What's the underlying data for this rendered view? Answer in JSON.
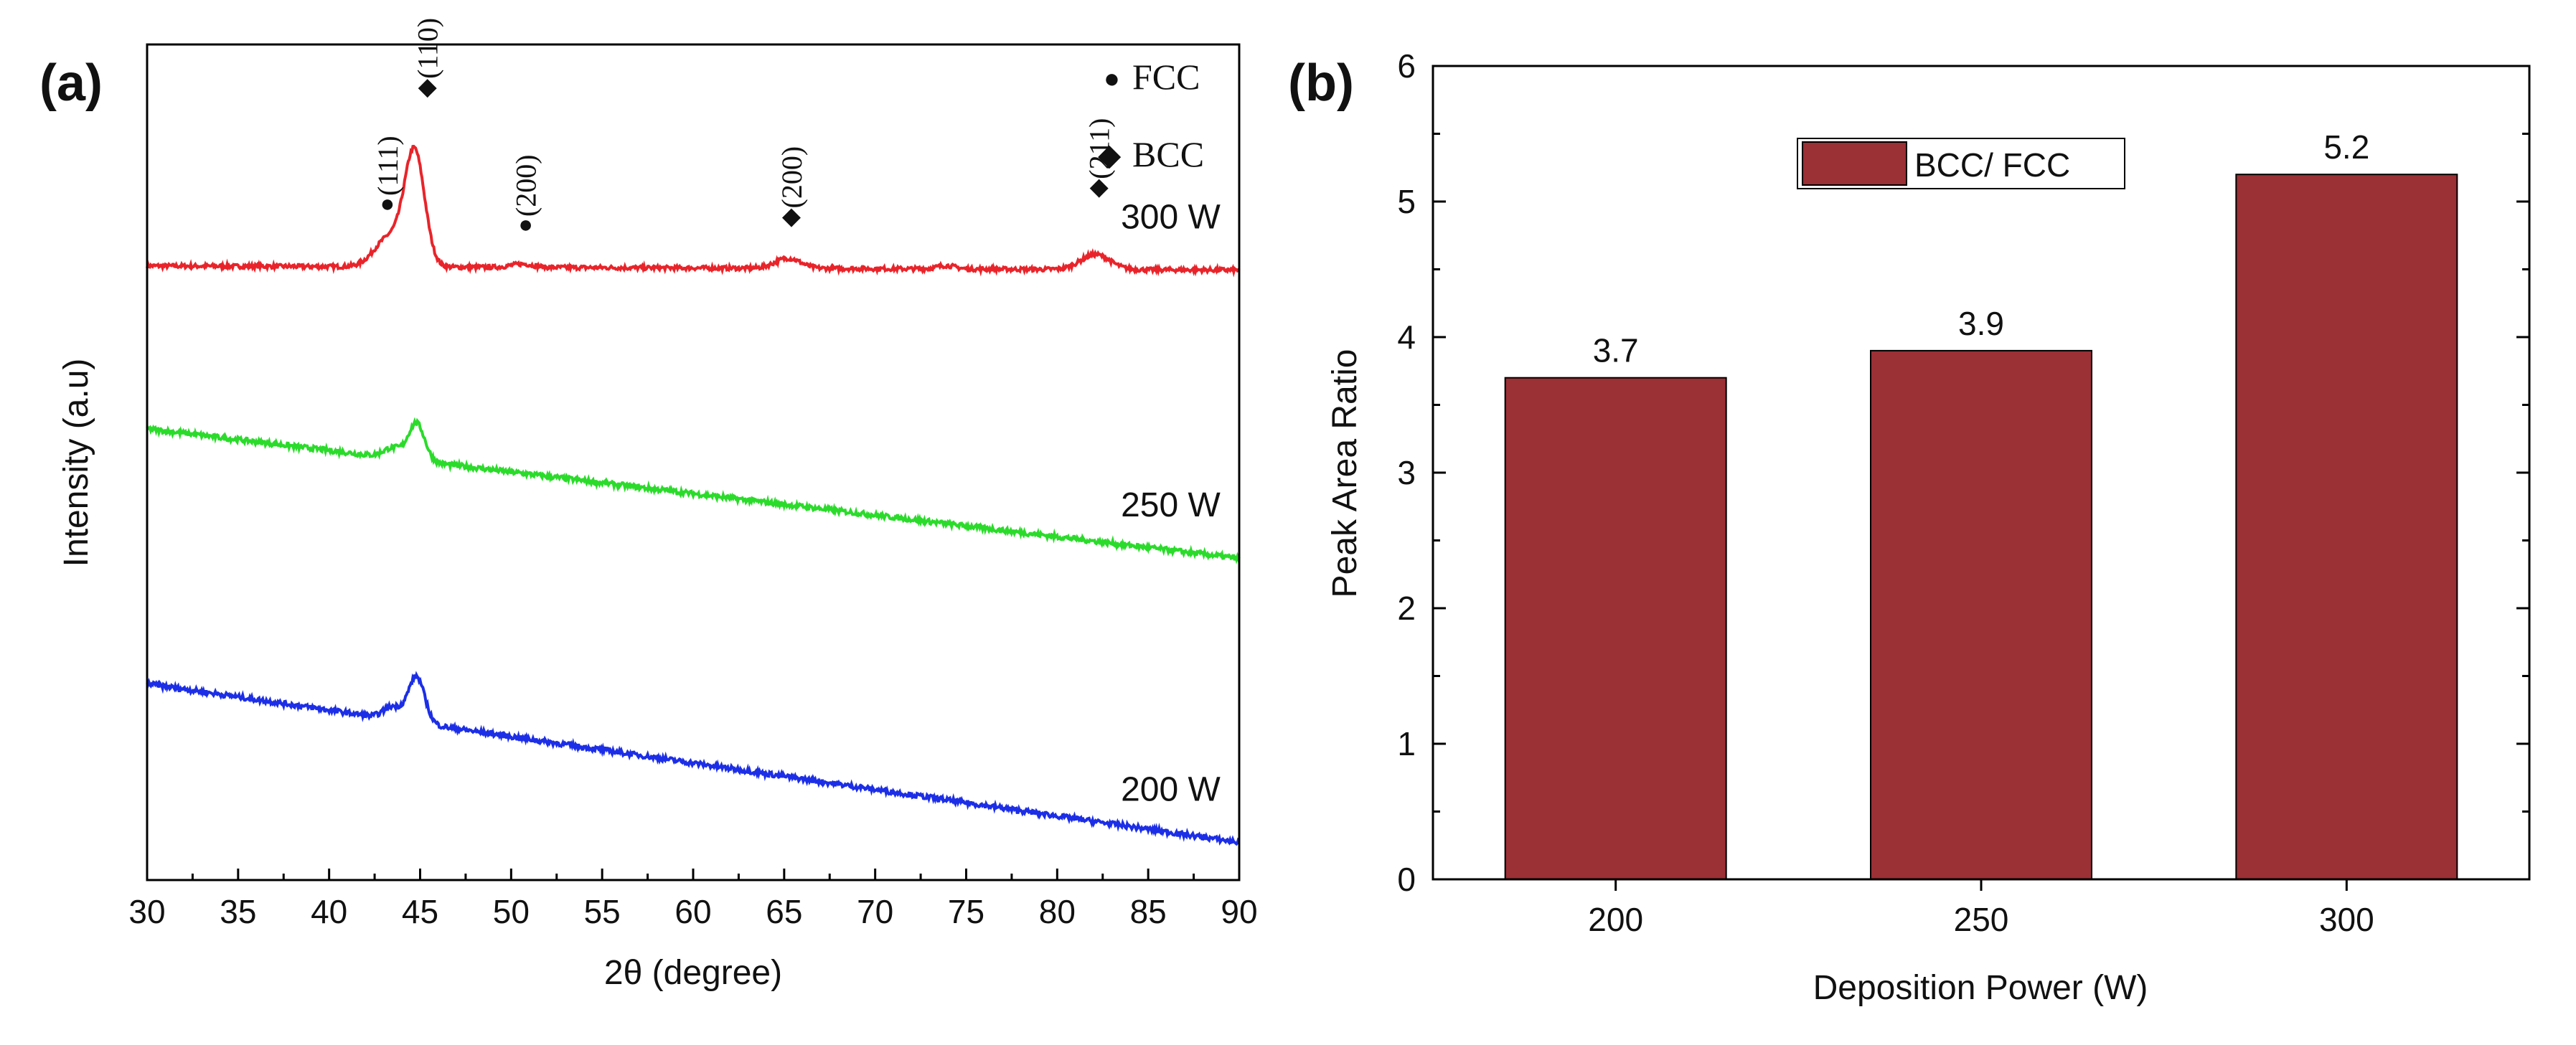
{
  "chart_data": [
    {
      "type": "line",
      "panel_label": "(a)",
      "title": "",
      "xlabel": "2θ (degree)",
      "ylabel": "Intensity (a.u)",
      "xlim": [
        30,
        90
      ],
      "xticks": [
        30,
        35,
        40,
        45,
        50,
        55,
        60,
        65,
        70,
        75,
        80,
        85,
        90
      ],
      "ylim": [
        0,
        10
      ],
      "legend": {
        "position": "top-right",
        "entries": [
          {
            "marker": "●",
            "label": "FCC"
          },
          {
            "marker": "◆",
            "label": "BCC"
          }
        ]
      },
      "series": [
        {
          "name": "300 W",
          "color": "#e8242a",
          "offset": 7.3,
          "start": 0.05,
          "end": 0.0,
          "noise": 0.025,
          "peaks": [
            {
              "x": 44.7,
              "h": 1.35,
              "w": 0.55
            },
            {
              "x": 43.3,
              "h": 0.35,
              "w": 0.8
            },
            {
              "x": 50.6,
              "h": 0.04,
              "w": 0.6
            },
            {
              "x": 65.2,
              "h": 0.12,
              "w": 0.7
            },
            {
              "x": 73.9,
              "h": 0.04,
              "w": 0.5
            },
            {
              "x": 82.1,
              "h": 0.18,
              "w": 0.8
            }
          ]
        },
        {
          "name": "250 W",
          "color": "#2bdb2b",
          "offset": 3.85,
          "start": 1.55,
          "end": 0.0,
          "noise": 0.03,
          "peaks": [
            {
              "x": 44.8,
              "h": 0.45,
              "w": 0.45
            },
            {
              "x": 43.5,
              "h": 0.12,
              "w": 0.5
            }
          ]
        },
        {
          "name": "200 W",
          "color": "#1c2ee6",
          "offset": 0.45,
          "start": 1.9,
          "end": 0.0,
          "noise": 0.03,
          "peaks": [
            {
              "x": 44.8,
              "h": 0.55,
              "w": 0.45
            },
            {
              "x": 43.5,
              "h": 0.15,
              "w": 0.5
            }
          ]
        }
      ],
      "peak_labels": [
        {
          "x": 43.2,
          "marker": "●",
          "label": "(111)"
        },
        {
          "x": 45.4,
          "marker": "◆",
          "label": "(110)"
        },
        {
          "x": 50.8,
          "marker": "●",
          "label": "(200)"
        },
        {
          "x": 65.4,
          "marker": "◆",
          "label": "(200)"
        },
        {
          "x": 82.3,
          "marker": "◆",
          "label": "(211)"
        }
      ]
    },
    {
      "type": "bar",
      "panel_label": "(b)",
      "title": "",
      "xlabel": "Deposition Power (W)",
      "ylabel": "Peak Area Ratio",
      "categories": [
        "200",
        "250",
        "300"
      ],
      "series": [
        {
          "name": "BCC/ FCC",
          "values": [
            3.7,
            3.9,
            5.2
          ],
          "color": "#9b3035"
        }
      ],
      "data_labels": [
        "3.7",
        "3.9",
        "5.2"
      ],
      "ylim": [
        0,
        6
      ],
      "yticks": [
        0,
        1,
        2,
        3,
        4,
        5,
        6
      ],
      "legend": {
        "position": "top-center",
        "entries": [
          {
            "label": "BCC/ FCC"
          }
        ]
      }
    }
  ]
}
